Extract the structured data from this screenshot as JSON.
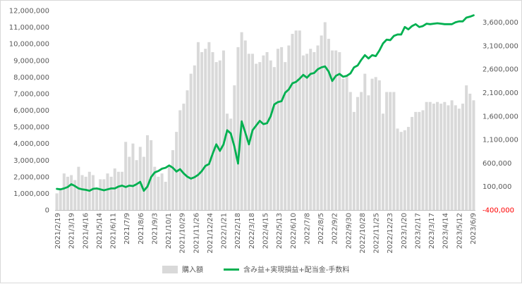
{
  "chart_data": {
    "type": "bar+line",
    "title": "",
    "left_axis": {
      "ticks": [
        "0",
        "1,000,000",
        "2,000,000",
        "3,000,000",
        "4,000,000",
        "5,000,000",
        "6,000,000",
        "7,000,000",
        "8,000,000",
        "9,000,000",
        "10,000,000",
        "11,000,000",
        "12,000,000"
      ],
      "ylim": [
        0,
        12000000
      ]
    },
    "right_axis": {
      "ticks": [
        "-400,000",
        "100,000",
        "600,000",
        "1,100,000",
        "1,600,000",
        "2,100,000",
        "2,600,000",
        "3,100,000",
        "3,600,000"
      ],
      "tick_values": [
        -400000,
        100000,
        600000,
        1100000,
        1600000,
        2100000,
        2600000,
        3100000,
        3600000
      ],
      "ylim": [
        -400000,
        3850000
      ],
      "negative_color": "#ff0000"
    },
    "x_ticks": [
      "2021/2/19",
      "2021/3/19",
      "2021/4/16",
      "2021/5/14",
      "2021/6/11",
      "2021/7/9",
      "2021/8/6",
      "2021/9/3",
      "2021/10/1",
      "2021/10/29",
      "2021/11/26",
      "2021/12/24",
      "2022/1/21",
      "2022/2/18",
      "2022/3/18",
      "2022/4/15",
      "2022/5/13",
      "2022/6/10",
      "2022/7/8",
      "2022/8/5",
      "2022/9/2",
      "2022/9/30",
      "2022/10/28",
      "2022/11/25",
      "2022/12/23",
      "2023/1/20",
      "2023/2/17",
      "2023/3/17",
      "2023/4/14",
      "2023/5/12",
      "2023/6/9"
    ],
    "series": [
      {
        "name": "購入額",
        "kind": "bar",
        "color": "#d9d9d9",
        "values": [
          1000000,
          1300000,
          2200000,
          2000000,
          2100000,
          1800000,
          2600000,
          2100000,
          2000000,
          2300000,
          2100000,
          1300000,
          1850000,
          1850000,
          2200000,
          2000000,
          2500000,
          2300000,
          2300000,
          4100000,
          3200000,
          4000000,
          3000000,
          3800000,
          3200000,
          4500000,
          4200000,
          2600000,
          2000000,
          2200000,
          1700000,
          2700000,
          3600000,
          4700000,
          6000000,
          6400000,
          7200000,
          8200000,
          8700000,
          10100000,
          9500000,
          9700000,
          10100000,
          9500000,
          8900000,
          9000000,
          9600000,
          5800000,
          5500000,
          7500000,
          9800000,
          10700000,
          10200000,
          9400000,
          9400000,
          8800000,
          8900000,
          9300000,
          9500000,
          9000000,
          8600000,
          9700000,
          9800000,
          8900000,
          9900000,
          10600000,
          10800000,
          10800000,
          9300000,
          9400000,
          9700000,
          9500000,
          9900000,
          10500000,
          11300000,
          10300000,
          9600000,
          9600000,
          9500000,
          7900000,
          8100000,
          7100000,
          5900000,
          6800000,
          7100000,
          8200000,
          6900000,
          7900000,
          8000000,
          7800000,
          5800000,
          7100000,
          7100000,
          7100000,
          4900000,
          4700000,
          4800000,
          5000000,
          5600000,
          5900000,
          5900000,
          6000000,
          6500000,
          6500000,
          6400000,
          6500000,
          6400000,
          6500000,
          6300000,
          6600000,
          6300000,
          6100000,
          6400000,
          7500000,
          7000000,
          6600000
        ]
      },
      {
        "name": "含み益+実現損益+配当金-手数料",
        "kind": "line",
        "color": "#00b050",
        "values": [
          50000,
          40000,
          60000,
          90000,
          150000,
          110000,
          60000,
          40000,
          30000,
          10000,
          50000,
          60000,
          40000,
          20000,
          40000,
          60000,
          60000,
          100000,
          120000,
          90000,
          120000,
          110000,
          150000,
          200000,
          10000,
          100000,
          300000,
          400000,
          430000,
          480000,
          500000,
          550000,
          500000,
          420000,
          470000,
          380000,
          310000,
          270000,
          300000,
          350000,
          430000,
          540000,
          580000,
          800000,
          1000000,
          860000,
          1000000,
          1300000,
          1230000,
          950000,
          590000,
          1490000,
          1250000,
          1000000,
          1300000,
          1400000,
          1500000,
          1430000,
          1450000,
          1600000,
          1850000,
          1900000,
          1920000,
          2100000,
          2170000,
          2300000,
          2330000,
          2400000,
          2480000,
          2420000,
          2500000,
          2520000,
          2600000,
          2640000,
          2660000,
          2550000,
          2350000,
          2460000,
          2500000,
          2440000,
          2460000,
          2510000,
          2640000,
          2680000,
          2800000,
          2900000,
          2830000,
          2900000,
          2880000,
          3000000,
          3150000,
          3230000,
          3220000,
          3310000,
          3340000,
          3340000,
          3500000,
          3450000,
          3520000,
          3560000,
          3500000,
          3520000,
          3570000,
          3560000,
          3570000,
          3580000,
          3570000,
          3560000,
          3560000,
          3560000,
          3600000,
          3620000,
          3620000,
          3700000,
          3720000,
          3750000
        ]
      }
    ],
    "legend": {
      "position": "bottom",
      "items": [
        "購入額",
        "含み益+実現損益+配当金-手数料"
      ]
    }
  }
}
